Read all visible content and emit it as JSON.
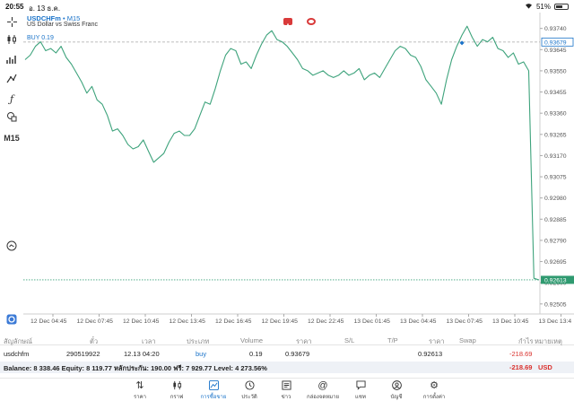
{
  "status": {
    "time": "20:55",
    "date": "อ. 13 ธ.ค.",
    "battery": "51%",
    "battery_level": 0.51
  },
  "chart": {
    "symbol": "USDCHFm",
    "timeframe": "M15",
    "description": "US Dollar vs Swiss Franc",
    "buy_label": "BUY 0.19",
    "toolbar_timeframe": "M15",
    "current_price": "0.92613",
    "buy_price": "0.93679"
  },
  "chart_data": {
    "type": "line",
    "y_ticks": [
      "0.93740",
      "0.93645",
      "0.93550",
      "0.93455",
      "0.93360",
      "0.93265",
      "0.93170",
      "0.93075",
      "0.92980",
      "0.92885",
      "0.92790",
      "0.92695",
      "0.92600",
      "0.92505"
    ],
    "x_ticks": [
      "12 Dec 04:45",
      "12 Dec 07:45",
      "12 Dec 10:45",
      "12 Dec 13:45",
      "12 Dec 16:45",
      "12 Dec 19:45",
      "12 Dec 22:45",
      "13 Dec 01:45",
      "13 Dec 04:45",
      "13 Dec 07:45",
      "13 Dec 10:45",
      "13 Dec 13:4"
    ],
    "ylim": [
      0.9246,
      0.93795
    ],
    "grid": true,
    "series": [
      {
        "color": "#3ea37c",
        "values": [
          0.936,
          0.9362,
          0.9366,
          0.9368,
          0.9364,
          0.9365,
          0.9363,
          0.9366,
          0.9361,
          0.9358,
          0.9354,
          0.935,
          0.9345,
          0.9348,
          0.9342,
          0.934,
          0.9335,
          0.9328,
          0.9329,
          0.9326,
          0.9322,
          0.932,
          0.9321,
          0.9324,
          0.9319,
          0.9314,
          0.9316,
          0.9318,
          0.9323,
          0.9327,
          0.9328,
          0.9326,
          0.9326,
          0.9329,
          0.9335,
          0.9341,
          0.934,
          0.9347,
          0.9355,
          0.9362,
          0.9365,
          0.9364,
          0.9358,
          0.9359,
          0.9356,
          0.9362,
          0.9367,
          0.9371,
          0.9373,
          0.9369,
          0.9368,
          0.9366,
          0.9363,
          0.936,
          0.9356,
          0.9355,
          0.9353,
          0.9354,
          0.9355,
          0.9353,
          0.9352,
          0.9353,
          0.9355,
          0.9353,
          0.9354,
          0.9356,
          0.9351,
          0.9353,
          0.9354,
          0.9352,
          0.9356,
          0.936,
          0.9364,
          0.9366,
          0.9365,
          0.9362,
          0.9361,
          0.9357,
          0.9351,
          0.9348,
          0.9345,
          0.934,
          0.9351,
          0.936,
          0.9366,
          0.9371,
          0.9375,
          0.937,
          0.9366,
          0.9369,
          0.9368,
          0.937,
          0.9365,
          0.9364,
          0.9361,
          0.9363,
          0.9358,
          0.9359,
          0.9355,
          0.9262,
          0.92613
        ]
      }
    ],
    "buy_level": 0.93679,
    "current_level": 0.92613,
    "marker": {
      "index": 85,
      "value": 0.93675
    }
  },
  "table": {
    "headers": [
      "สัญลักษณ์",
      "ตั๋ว",
      "เวลา",
      "ประเภท",
      "Volume",
      "ราคา",
      "S/L",
      "T/P",
      "ราคา",
      "Swap",
      "กำไร",
      "หมายเหตุ"
    ],
    "row": {
      "symbol": "usdchfm",
      "ticket": "290519922",
      "time": "12.13 04:20",
      "type": "buy",
      "volume": "0.19",
      "open_price": "0.93679",
      "sl": "",
      "tp": "",
      "price": "0.92613",
      "swap": "",
      "profit": "-218.69"
    },
    "balance_text": "Balance: 8 338.46 Equity: 8 119.77 หลักประกัน: 190.00 ฟรี: 7 929.77 Level: 4 273.56%",
    "total_profit": "-218.69",
    "currency": "USD"
  },
  "nav": [
    {
      "label": "ราคา",
      "icon": "quotes-icon"
    },
    {
      "label": "กราฟ",
      "icon": "chart-icon"
    },
    {
      "label": "การซื้อขาย",
      "icon": "trade-icon"
    },
    {
      "label": "ประวัติ",
      "icon": "history-icon"
    },
    {
      "label": "ข่าว",
      "icon": "news-icon"
    },
    {
      "label": "กล่องจดหมาย",
      "icon": "mailbox-icon"
    },
    {
      "label": "แชท",
      "icon": "chat-icon"
    },
    {
      "label": "บัญชี",
      "icon": "account-icon"
    },
    {
      "label": "การตั้งค่า",
      "icon": "settings-icon"
    }
  ],
  "active_nav": 2
}
